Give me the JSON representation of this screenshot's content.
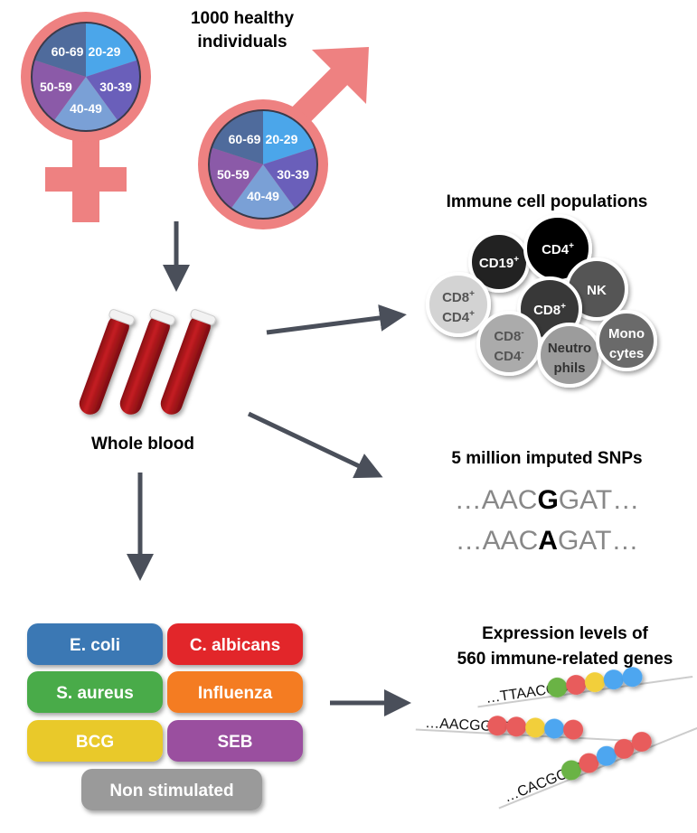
{
  "header": {
    "line1": "1000 healthy",
    "line2": "individuals"
  },
  "age_groups": [
    "20-29",
    "30-39",
    "40-49",
    "50-59",
    "60-69"
  ],
  "colors": {
    "symbol": "#ee8181",
    "age_20_29": "#4ba6ea",
    "age_30_39": "#6a5fba",
    "age_40_49": "#7aa0d6",
    "age_50_59": "#8b5aa8",
    "age_60_69": "#4f6b9c",
    "arrow": "#4a4f5a",
    "blood": "#b5191e"
  },
  "whole_blood": "Whole blood",
  "immune": {
    "title": "Immune cell populations",
    "cells": [
      {
        "line1": "CD19",
        "sup1": "+",
        "line2": "",
        "sup2": "",
        "color": "#222222",
        "text": "#ffffff"
      },
      {
        "line1": "CD4",
        "sup1": "+",
        "line2": "",
        "sup2": "",
        "color": "#000000",
        "text": "#ffffff"
      },
      {
        "line1": "NK",
        "sup1": "",
        "line2": "",
        "sup2": "",
        "color": "#555555",
        "text": "#ffffff"
      },
      {
        "line1": "CD8",
        "sup1": "+",
        "line2": "CD4",
        "sup2": "+",
        "color": "#d3d3d3",
        "text": "#555555"
      },
      {
        "line1": "CD8",
        "sup1": "+",
        "line2": "",
        "sup2": "",
        "color": "#383838",
        "text": "#ffffff"
      },
      {
        "line1": "CD8",
        "sup1": "-",
        "line2": "CD4",
        "sup2": "-",
        "color": "#ababab",
        "text": "#555555"
      },
      {
        "line1": "Neutro",
        "sup1": "",
        "line2": "phils",
        "sup2": "",
        "color": "#9c9c9c",
        "text": "#333333"
      },
      {
        "line1": "Mono",
        "sup1": "",
        "line2": "cytes",
        "sup2": "",
        "color": "#6a6a6a",
        "text": "#ffffff"
      }
    ]
  },
  "snps": {
    "title": "5 million imputed SNPs",
    "seq1": {
      "pre": "…AAC",
      "variant": "G",
      "post": "GAT…"
    },
    "seq2": {
      "pre": "…AAC",
      "variant": "A",
      "post": "GAT…"
    }
  },
  "stimuli": [
    {
      "label": "E. coli",
      "color": "#3a78b4"
    },
    {
      "label": "C. albicans",
      "color": "#e2262b"
    },
    {
      "label": "S. aureus",
      "color": "#4aab4a"
    },
    {
      "label": "Influenza",
      "color": "#f47c20"
    },
    {
      "label": "BCG",
      "color": "#e9c92c"
    },
    {
      "label": "SEB",
      "color": "#9a4f9f"
    },
    {
      "label": "Non stimulated",
      "color": "#9a9a9a"
    }
  ],
  "expression": {
    "title1": "Expression levels of",
    "title2": "560 immune-related genes",
    "rows": [
      {
        "seq": "…TTAACGG",
        "beads": [
          "#6bb344",
          "#e85c5c",
          "#f2cf3b",
          "#4ea6f0",
          "#4ea6f0"
        ]
      },
      {
        "seq": "…AACGGAT",
        "beads": [
          "#e85c5c",
          "#e85c5c",
          "#f2cf3b",
          "#4ea6f0",
          "#e85c5c"
        ]
      },
      {
        "seq": "…CACGCAA",
        "beads": [
          "#6bb344",
          "#e85c5c",
          "#4ea6f0",
          "#e85c5c",
          "#e85c5c"
        ]
      }
    ]
  }
}
